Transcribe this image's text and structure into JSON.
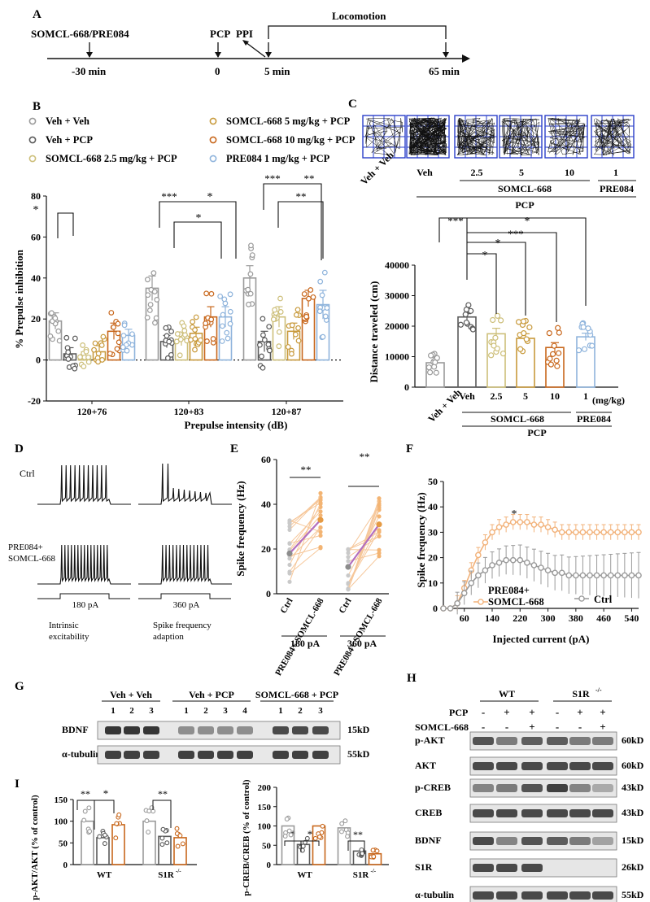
{
  "panels": {
    "A": "A",
    "B": "B",
    "C": "C",
    "D": "D",
    "E": "E",
    "F": "F",
    "G": "G",
    "H": "H",
    "I": "I"
  },
  "colors": {
    "veh": "#9a9a9a",
    "vehpcp": "#5a5a5a",
    "s25": "#cdbf7a",
    "s5": "#c89a3c",
    "s10": "#c8671c",
    "pre": "#8fb4dc",
    "trace": "#111111",
    "blot": "#222222"
  },
  "timeline": {
    "drug_label": "SOMCL-668/PRE084",
    "pcp_label": "PCP",
    "ppi_label": "PPI",
    "locomotion_label": "Locomotion",
    "ticks": [
      "-30 min",
      "0",
      "5 min",
      "65 min"
    ]
  },
  "legend_b": [
    {
      "label": "Veh + Veh",
      "color": "#9a9a9a"
    },
    {
      "label": "Veh + PCP",
      "color": "#5a5a5a"
    },
    {
      "label": "SOMCL-668 2.5 mg/kg + PCP",
      "color": "#cdbf7a"
    },
    {
      "label": "SOMCL-668 5 mg/kg + PCP",
      "color": "#c89a3c"
    },
    {
      "label": "SOMCL-668 10 mg/kg + PCP",
      "color": "#c8671c"
    },
    {
      "label": "PRE084 1 mg/kg + PCP",
      "color": "#8fb4dc"
    }
  ],
  "tracks_c": {
    "labels": [
      "Veh",
      "2.5",
      "5",
      "10",
      "1"
    ],
    "vehveh": "Veh + Veh",
    "somcl": "SOMCL-668",
    "pre": "PRE084",
    "pcp": "PCP"
  },
  "stars": {
    "one": "*",
    "two": "**",
    "three": "***"
  },
  "chart_data": [
    {
      "panel": "B",
      "type": "bar",
      "ylabel": "% Prepulse inhibition",
      "xlabel": "Prepulse intensity (dB)",
      "ylim": [
        -20,
        80
      ],
      "yticks": [
        -20,
        0,
        20,
        40,
        60,
        80
      ],
      "categories": [
        "120+76",
        "120+83",
        "120+87"
      ],
      "series": [
        {
          "name": "Veh + Veh",
          "values": [
            19,
            35,
            40
          ]
        },
        {
          "name": "Veh + PCP",
          "values": [
            3,
            9,
            9
          ]
        },
        {
          "name": "SOMCL-668 2.5 mg/kg + PCP",
          "values": [
            2,
            10,
            21
          ]
        },
        {
          "name": "SOMCL-668 5 mg/kg + PCP",
          "values": [
            4,
            13,
            14
          ]
        },
        {
          "name": "SOMCL-668 10 mg/kg + PCP",
          "values": [
            14,
            21,
            30
          ]
        },
        {
          "name": "PRE084 1 mg/kg + PCP",
          "values": [
            12,
            21,
            27
          ]
        }
      ],
      "errors": [
        [
          4,
          6,
          6
        ],
        [
          3,
          3,
          5
        ],
        [
          2,
          3,
          5
        ],
        [
          3,
          3,
          4
        ],
        [
          4,
          5,
          4
        ],
        [
          3,
          5,
          7
        ]
      ]
    },
    {
      "panel": "C",
      "type": "bar",
      "ylabel": "Distance traveled (cm)",
      "ylim": [
        0,
        40000
      ],
      "yticks": [
        0,
        10000,
        20000,
        30000,
        40000
      ],
      "categories": [
        "Veh + Veh",
        "Veh",
        "2.5",
        "5",
        "10",
        "1"
      ],
      "unit_label": "(mg/kg)",
      "values": [
        8000,
        23000,
        17500,
        16000,
        13000,
        16500
      ],
      "errors": [
        900,
        1100,
        1800,
        1500,
        1600,
        1200
      ]
    },
    {
      "panel": "E",
      "type": "scatter",
      "ylabel": "Spike frequency (Hz)",
      "ylim": [
        0,
        60
      ],
      "yticks": [
        0,
        20,
        40,
        60
      ],
      "x_groups": [
        "180 pA",
        "360 pA"
      ],
      "categories": [
        "Ctrl",
        "PRE084+ SOMCL-668"
      ],
      "means": [
        [
          18,
          33
        ],
        [
          12,
          31
        ]
      ]
    },
    {
      "panel": "F",
      "type": "line",
      "ylabel": "Spike frequency (Hz)",
      "xlabel": "Injected current (pA)",
      "ylim": [
        0,
        50
      ],
      "yticks": [
        0,
        10,
        20,
        30,
        40,
        50
      ],
      "xticks": [
        60,
        140,
        220,
        300,
        380,
        460,
        540
      ],
      "x": [
        0,
        20,
        40,
        60,
        80,
        100,
        120,
        140,
        160,
        180,
        200,
        220,
        240,
        260,
        280,
        300,
        320,
        340,
        360,
        380,
        400,
        420,
        440,
        460,
        480,
        500,
        520,
        540,
        560
      ],
      "series": [
        {
          "name": "PRE084+ SOMCL-668",
          "values": [
            0,
            0,
            2,
            8,
            15,
            21,
            26,
            30,
            32,
            33,
            34,
            34,
            34,
            33,
            33,
            32,
            31,
            30,
            30,
            30,
            30,
            30,
            30,
            30,
            30,
            30,
            30,
            30,
            30
          ]
        },
        {
          "name": "Ctrl",
          "values": [
            0,
            0,
            2,
            6,
            10,
            13,
            15,
            17,
            18,
            19,
            19,
            19,
            18,
            17,
            16,
            15,
            14,
            14,
            13,
            13,
            13,
            13,
            13,
            13,
            13,
            13,
            13,
            13,
            13
          ]
        }
      ]
    },
    {
      "panel": "I-left",
      "type": "bar",
      "ylabel": "p-AKT/AKT (% of control)",
      "ylim": [
        0,
        150
      ],
      "yticks": [
        0,
        50,
        100,
        150
      ],
      "categories": [
        "WT",
        "S1R -/-"
      ],
      "values": [
        [
          100,
          62,
          92
        ],
        [
          100,
          65,
          62
        ]
      ]
    },
    {
      "panel": "I-right",
      "type": "bar",
      "ylabel": "p-CREB/CREB (% of control)",
      "ylim": [
        0,
        200
      ],
      "yticks": [
        0,
        50,
        100,
        150,
        200
      ],
      "categories": [
        "WT",
        "S1R -/-"
      ],
      "values": [
        [
          100,
          52,
          100
        ],
        [
          95,
          35,
          28
        ]
      ]
    }
  ],
  "panel_d": {
    "ctrl": "Ctrl",
    "pre_line1": "PRE084+",
    "pre_line2": "SOMCL-668",
    "step1": "180 pA",
    "step2": "360 pA",
    "cap1a": "Intrinsic",
    "cap1b": "excitability",
    "cap2a": "Spike frequency",
    "cap2b": "adaption"
  },
  "blot_g": {
    "groups": [
      "Veh + Veh",
      "Veh + PCP",
      "SOMCL-668 + PCP"
    ],
    "lanes": [
      "1",
      "2",
      "3",
      "1",
      "2",
      "3",
      "4",
      "1",
      "2",
      "3"
    ],
    "rows": [
      {
        "label": "BDNF",
        "kd": "15kD"
      },
      {
        "label": "α-tubulin",
        "kd": "55kD"
      }
    ]
  },
  "blot_h": {
    "groups": [
      "WT",
      "S1R -/-"
    ],
    "pcp_label": "PCP",
    "somcl_label": "SOMCL-668",
    "pcp_signs": [
      "-",
      "+",
      "+",
      "-",
      "+",
      "+"
    ],
    "somcl_signs": [
      "-",
      "-",
      "+",
      "-",
      "-",
      "+"
    ],
    "rows": [
      {
        "label": "p-AKT",
        "kd": "60kD"
      },
      {
        "label": "AKT",
        "kd": "60kD"
      },
      {
        "label": "p-CREB",
        "kd": "43kD"
      },
      {
        "label": "CREB",
        "kd": "43kD"
      },
      {
        "label": "BDNF",
        "kd": "15kD"
      },
      {
        "label": "S1R",
        "kd": "26kD"
      },
      {
        "label": "α-tubulin",
        "kd": "55kD"
      }
    ]
  }
}
